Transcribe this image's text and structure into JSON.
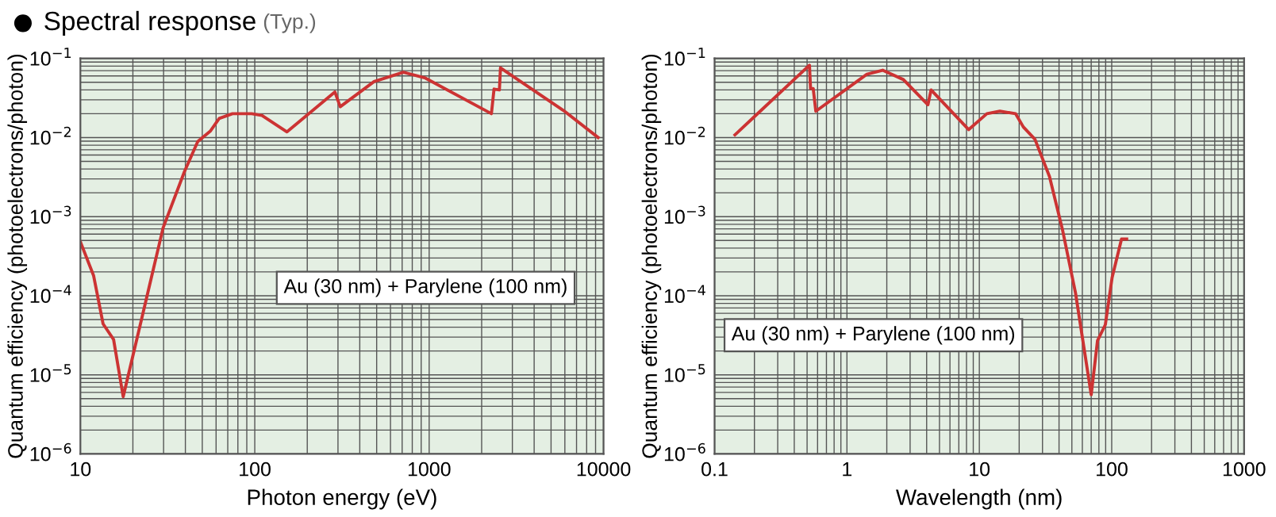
{
  "chart_data": [
    {
      "type": "line",
      "title": "Spectral response",
      "subtitle": "(Typ.)",
      "xlabel": "Photon energy (eV)",
      "ylabel": "Quantum efficiency (photoelectrons/photon)",
      "log": "xy",
      "grid": true,
      "marker": "none",
      "line_style": "solid",
      "annotations": [
        "Au (30 nm) + Parylene (100 nm)"
      ],
      "xlim": [
        10,
        10000
      ],
      "ylim": [
        1e-06,
        0.1
      ],
      "xticks": [
        10,
        100,
        1000,
        10000
      ],
      "yticks": [
        {
          "value": 1e-06,
          "label": "10$^{−6}$"
        },
        {
          "value": 1e-05,
          "label": "10$^{−5}$"
        },
        {
          "value": 0.0001,
          "label": "10$^{−4}$"
        },
        {
          "value": 0.001,
          "label": "10$^{−3}$"
        },
        {
          "value": 0.01,
          "label": "10$^{−2}$"
        },
        {
          "value": 0.1,
          "label": "10$^{−1}$"
        }
      ],
      "x": [
        10,
        11.9,
        13.5,
        15.5,
        17.6,
        22.5,
        29.8,
        39.5,
        47.1,
        55.5,
        62.5,
        74.5,
        96,
        110,
        153,
        288,
        309,
        483,
        711,
        942,
        2275,
        2355,
        2528,
        2565,
        5890,
        9310
      ],
      "series": [
        {
          "color": "#cc3333",
          "values": [
            0.00048,
            0.00018,
            4.4e-05,
            2.8e-05,
            5.3e-06,
            5.2e-05,
            0.00072,
            0.0037,
            0.0089,
            0.012,
            0.0174,
            0.02,
            0.02,
            0.019,
            0.0118,
            0.0377,
            0.0245,
            0.051,
            0.067,
            0.057,
            0.02,
            0.041,
            0.04,
            0.076,
            0.022,
            0.01
          ]
        }
      ]
    },
    {
      "type": "line",
      "xlabel": "Wavelength (nm)",
      "ylabel": "Quantum efficiency (photoelectrons/photon)",
      "log": "xy",
      "grid": true,
      "marker": "none",
      "line_style": "solid",
      "annotations": [
        "Au (30 nm) + Parylene (100 nm)"
      ],
      "xlim": [
        0.1,
        1000
      ],
      "ylim": [
        1e-06,
        0.1
      ],
      "xticks": [
        0.1,
        1,
        10,
        100,
        1000
      ],
      "yticks": [
        {
          "value": 1e-06,
          "label": "10$^{−6}$"
        },
        {
          "value": 1e-05,
          "label": "10$^{−5}$"
        },
        {
          "value": 0.0001,
          "label": "10$^{−4}$"
        },
        {
          "value": 0.001,
          "label": "10$^{−3}$"
        },
        {
          "value": 0.01,
          "label": "10$^{−2}$"
        },
        {
          "value": 0.1,
          "label": "10$^{−1}$"
        }
      ],
      "x": [
        0.1425,
        0.201,
        0.521,
        0.531,
        0.556,
        0.582,
        1.415,
        1.86,
        2.67,
        4.09,
        4.32,
        8.3,
        11.4,
        14.3,
        18.8,
        21.5,
        26.3,
        33.9,
        42.5,
        53.3,
        70,
        78.1,
        89.5,
        100.7,
        118.6,
        129.7
      ],
      "series": [
        {
          "color": "#cc3333",
          "values": [
            0.0108,
            0.0185,
            0.082,
            0.0417,
            0.0417,
            0.0215,
            0.063,
            0.071,
            0.054,
            0.026,
            0.04,
            0.0126,
            0.02,
            0.0215,
            0.02,
            0.0136,
            0.0095,
            0.0032,
            0.00068,
            0.000108,
            5.6e-06,
            2.7e-05,
            4.3e-05,
            0.00017,
            0.00052,
            0.00052
          ]
        }
      ]
    }
  ]
}
